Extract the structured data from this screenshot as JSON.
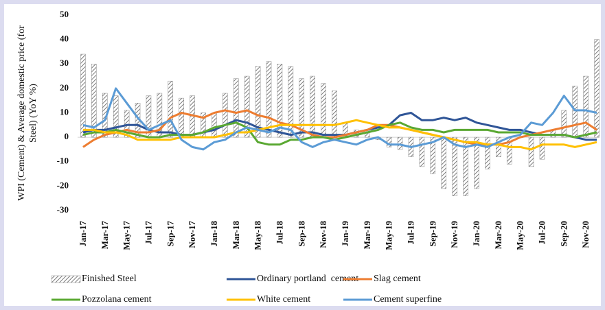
{
  "chart_data": {
    "type": "bar",
    "ylabel": [
      "WPI (Cement) & Average domestic price (for",
      "Steel) (YoY %)"
    ],
    "categories": [
      "Jan-17",
      null,
      "Mar-17",
      null,
      "May-17",
      null,
      "Jul-17",
      null,
      "Sep-17",
      null,
      "Nov-17",
      null,
      "Jan-18",
      null,
      "Mar-18",
      null,
      "May-18",
      null,
      "Jul-18",
      null,
      "Sep-18",
      null,
      "Nov-18",
      null,
      "Jan-19",
      null,
      "Mar-19",
      null,
      "May-19",
      null,
      "Jul-19",
      null,
      "Sep-19",
      null,
      "Nov-19",
      null,
      "Jan-20",
      null,
      "Mar-20",
      null,
      "May-20",
      null,
      "Jul-20",
      null,
      "Sep-20",
      null,
      "Nov-20",
      null
    ],
    "ylim": [
      -30,
      50
    ],
    "yticks": [
      -30,
      -20,
      -10,
      0,
      10,
      20,
      30,
      40,
      50
    ],
    "grid": false,
    "series": [
      {
        "name": "Finished Steel",
        "type": "bar",
        "color": "#8a8a8a",
        "values": [
          34,
          30,
          18,
          17,
          11,
          14,
          17,
          18,
          23,
          16,
          17,
          10,
          10,
          18,
          24,
          25,
          29,
          31,
          30,
          29,
          24,
          25,
          22,
          19,
          6,
          3,
          2,
          -1,
          -4,
          -5,
          -8,
          -12,
          -15,
          -21,
          -24,
          -24,
          -21,
          -13,
          -8,
          -11,
          0,
          -12,
          -9,
          3,
          11,
          21,
          25,
          40
        ]
      },
      {
        "name": "Ordinary portland  cement",
        "type": "line",
        "color": "#2f5597",
        "values": [
          2,
          3,
          3,
          4,
          5,
          5,
          3,
          2,
          2,
          1,
          1,
          2,
          3,
          5,
          7,
          6,
          4,
          3,
          2,
          1,
          2,
          2,
          1,
          1,
          1,
          2,
          3,
          4,
          5,
          9,
          10,
          7,
          7,
          8,
          7,
          8,
          6,
          5,
          4,
          3,
          3,
          2,
          1,
          1,
          1,
          0,
          -1,
          -1
        ]
      },
      {
        "name": "Slag cement",
        "type": "line",
        "color": "#ed7d31",
        "values": [
          -4,
          -1,
          1,
          2,
          3,
          2,
          2,
          3,
          8,
          10,
          9,
          8,
          10,
          11,
          10,
          11,
          9,
          8,
          6,
          5,
          3,
          1,
          0,
          0,
          1,
          2,
          3,
          5,
          5,
          4,
          3,
          2,
          1,
          0,
          -1,
          -2,
          -3,
          -3,
          -3,
          -2,
          0,
          1,
          2,
          3,
          4,
          5,
          6,
          3
        ]
      },
      {
        "name": "Pozzolana cement",
        "type": "line",
        "color": "#5aa832",
        "values": [
          1,
          2,
          2,
          3,
          2,
          1,
          0,
          0,
          1,
          1,
          1,
          2,
          4,
          5,
          6,
          4,
          -2,
          -3,
          -3,
          -1,
          -1,
          0,
          0,
          -1,
          0,
          1,
          2,
          3,
          5,
          6,
          4,
          3,
          3,
          2,
          3,
          3,
          3,
          3,
          2,
          2,
          2,
          1,
          1,
          1,
          1,
          0,
          1,
          2
        ]
      },
      {
        "name": "White cement",
        "type": "line",
        "color": "#ffc000",
        "values": [
          3,
          3,
          2,
          2,
          1,
          -1,
          -1,
          -1,
          -1,
          0,
          0,
          0,
          0,
          1,
          2,
          2,
          3,
          4,
          5,
          5,
          5,
          5,
          5,
          5,
          6,
          7,
          6,
          5,
          4,
          4,
          3,
          2,
          1,
          0,
          -1,
          -2,
          -2,
          -3,
          -3,
          -4,
          -4,
          -5,
          -3,
          -3,
          -3,
          -4,
          -3,
          -2
        ]
      },
      {
        "name": "Cement superfine",
        "type": "line",
        "color": "#5b9bd5",
        "values": [
          5,
          4,
          7,
          20,
          14,
          8,
          3,
          5,
          7,
          -1,
          -4,
          -5,
          -2,
          -1,
          2,
          4,
          3,
          2,
          4,
          3,
          -2,
          -4,
          -2,
          -1,
          -2,
          -3,
          -1,
          0,
          -3,
          -3,
          -4,
          -3,
          -2,
          0,
          -3,
          -4,
          -3,
          -4,
          -2,
          0,
          1,
          6,
          5,
          10,
          17,
          11,
          11,
          10
        ]
      }
    ]
  }
}
